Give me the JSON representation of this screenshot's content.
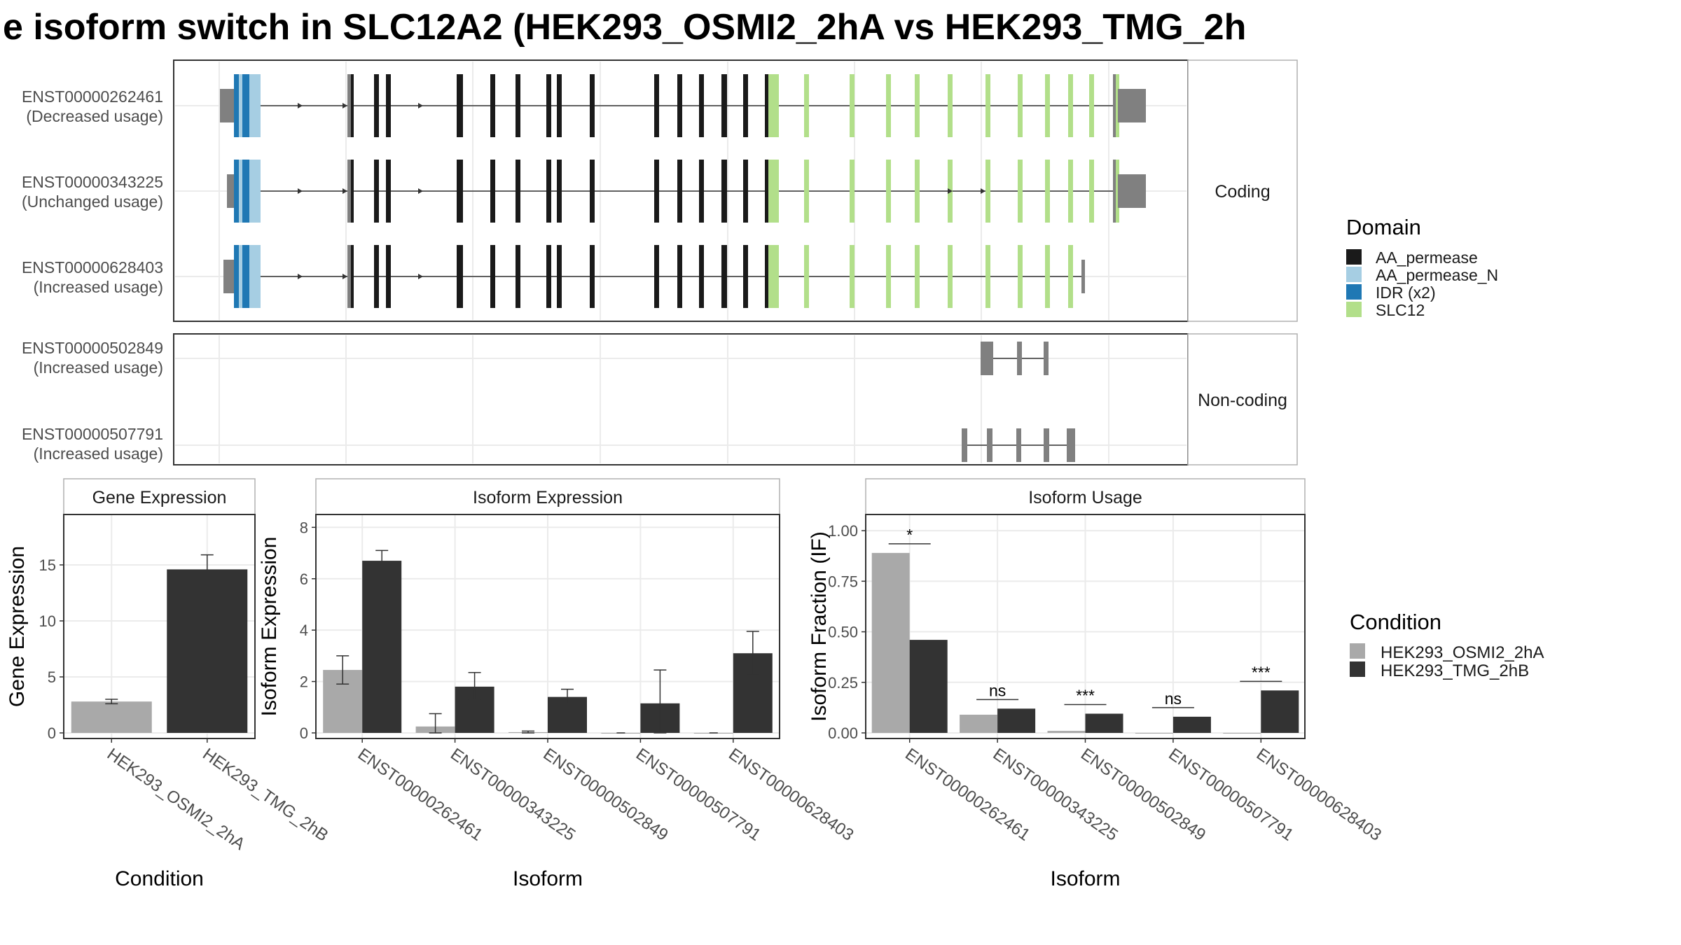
{
  "title": "e isoform switch in SLC12A2 (HEK293_OSMI2_2hA vs HEK293_TMG_2h",
  "colors": {
    "AA_permease": "#1a1a1a",
    "AA_permease_N": "#a6cee3",
    "IDR": "#1f78b4",
    "SLC12": "#b2df8a",
    "utr": "#808080",
    "cond_a": "#a9a9a9",
    "cond_b": "#333333"
  },
  "transcript_panel": {
    "coding_label": "Coding",
    "noncoding_label": "Non-coding",
    "coding_tracks": [
      {
        "id": "ENST00000262461",
        "usage": "(Decreased usage)"
      },
      {
        "id": "ENST00000343225",
        "usage": "(Unchanged usage)"
      },
      {
        "id": "ENST00000628403",
        "usage": "(Increased usage)"
      }
    ],
    "noncoding_tracks": [
      {
        "id": "ENST00000502849",
        "usage": "(Increased usage)"
      },
      {
        "id": "ENST00000507791",
        "usage": "(Increased usage)"
      }
    ]
  },
  "legends": {
    "domain_title": "Domain",
    "domain_items": [
      "AA_permease",
      "AA_permease_N",
      "IDR (x2)",
      "SLC12"
    ],
    "condition_title": "Condition",
    "condition_items": [
      "HEK293_OSMI2_2hA",
      "HEK293_TMG_2hB"
    ]
  },
  "chart_data": [
    {
      "type": "bar",
      "title": "Gene Expression",
      "xlabel": "Condition",
      "ylabel": "Gene Expression",
      "ylim": [
        0,
        19.5
      ],
      "yticks": [
        0,
        5,
        10,
        15
      ],
      "categories": [
        "HEK293_OSMI2_2hA",
        "HEK293_TMG_2hB"
      ],
      "values": [
        2.8,
        14.6
      ],
      "errors": [
        [
          2.6,
          3.0
        ],
        [
          13.3,
          15.9
        ]
      ]
    },
    {
      "type": "bar",
      "title": "Isoform Expression",
      "xlabel": "Isoform",
      "ylabel": "Isoform Expression",
      "ylim": [
        0,
        8.5
      ],
      "yticks": [
        0,
        2,
        4,
        6,
        8
      ],
      "categories": [
        "ENST00000262461",
        "ENST00000343225",
        "ENST00000502849",
        "ENST00000507791",
        "ENST00000628403"
      ],
      "series": [
        {
          "name": "HEK293_OSMI2_2hA",
          "values": [
            2.45,
            0.25,
            0.03,
            0.0,
            0.0
          ],
          "errors": [
            [
              1.9,
              3.0
            ],
            [
              0.0,
              0.75
            ],
            [
              0.0,
              0.07
            ],
            [
              0,
              0
            ],
            [
              0,
              0
            ]
          ]
        },
        {
          "name": "HEK293_TMG_2hB",
          "values": [
            6.7,
            1.8,
            1.4,
            1.15,
            3.1
          ],
          "errors": [
            [
              6.3,
              7.1
            ],
            [
              1.3,
              2.35
            ],
            [
              1.15,
              1.7
            ],
            [
              0.0,
              2.45
            ],
            [
              2.25,
              3.95
            ]
          ]
        }
      ]
    },
    {
      "type": "bar",
      "title": "Isoform Usage",
      "xlabel": "Isoform",
      "ylabel": "Isoform Fraction (IF)",
      "ylim": [
        0,
        1.08
      ],
      "yticks": [
        0.0,
        0.25,
        0.5,
        0.75,
        1.0
      ],
      "ytick_labels": [
        "0.00",
        "0.25",
        "0.50",
        "0.75",
        "1.00"
      ],
      "categories": [
        "ENST00000262461",
        "ENST00000343225",
        "ENST00000502849",
        "ENST00000507791",
        "ENST00000628403"
      ],
      "series": [
        {
          "name": "HEK293_OSMI2_2hA",
          "values": [
            0.89,
            0.09,
            0.01,
            0.0,
            0.0
          ]
        },
        {
          "name": "HEK293_TMG_2hB",
          "values": [
            0.46,
            0.12,
            0.095,
            0.08,
            0.21
          ]
        }
      ],
      "significance": [
        "*",
        "ns",
        "***",
        "ns",
        "***"
      ]
    }
  ]
}
